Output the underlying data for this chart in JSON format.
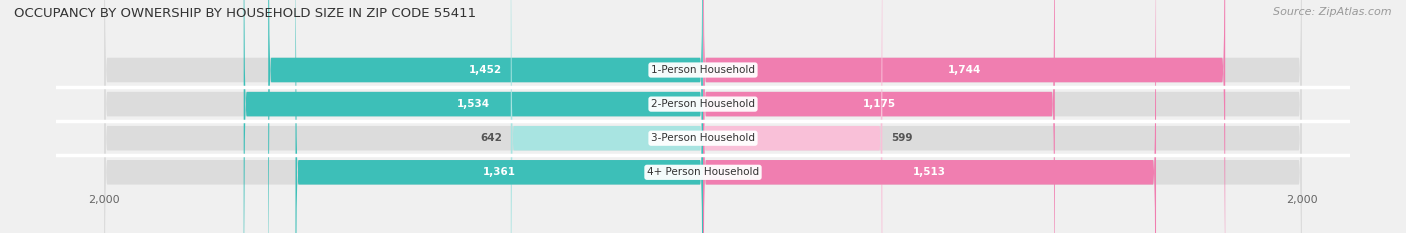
{
  "title": "OCCUPANCY BY OWNERSHIP BY HOUSEHOLD SIZE IN ZIP CODE 55411",
  "source": "Source: ZipAtlas.com",
  "categories": [
    "1-Person Household",
    "2-Person Household",
    "3-Person Household",
    "4+ Person Household"
  ],
  "owner_values": [
    1452,
    1534,
    642,
    1361
  ],
  "renter_values": [
    1744,
    1175,
    599,
    1513
  ],
  "owner_color": "#3DBFB8",
  "renter_color": "#F07EB0",
  "owner_light_color": "#A8E4E1",
  "renter_light_color": "#F9C0D8",
  "axis_max": 2000,
  "bar_height": 0.72,
  "title_fontsize": 9.5,
  "source_fontsize": 8,
  "label_fontsize": 7.5,
  "tick_fontsize": 8,
  "legend_fontsize": 8,
  "background_color": "#f0f0f0",
  "bar_background_color": "#dcdcdc",
  "separator_color": "#ffffff",
  "text_color_dark": "#555555",
  "text_color_light": "#ffffff"
}
